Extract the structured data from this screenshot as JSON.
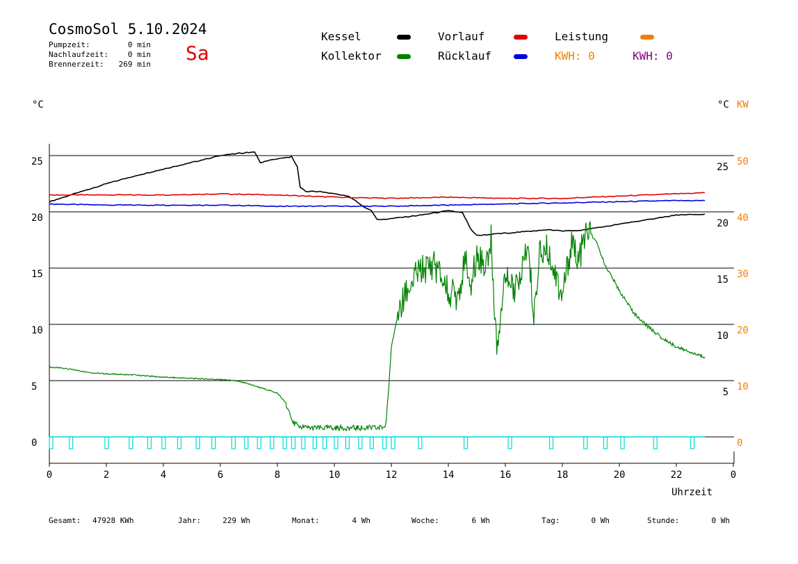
{
  "header": {
    "title": "CosmoSol 5.10.2024",
    "pumpzeit_label": "Pumpzeit:",
    "pumpzeit_value": "0 min",
    "nachlauf_label": "Nachlaufzeit:",
    "nachlauf_value": "0 min",
    "brenner_label": "Brennerzeit:",
    "brenner_value": "269 min",
    "day": "Sa"
  },
  "legend": {
    "kessel": {
      "label": "Kessel",
      "color": "#000000"
    },
    "kollektor": {
      "label": "Kollektor",
      "color": "#008000"
    },
    "vorlauf": {
      "label": "Vorlauf",
      "color": "#e00000"
    },
    "ruecklauf": {
      "label": "Rücklauf",
      "color": "#0000e0"
    },
    "leistung": {
      "label": "Leistung",
      "color": "#f08000"
    },
    "kwh1": {
      "text": "KWH: 0",
      "color": "#f08000"
    },
    "kwh2": {
      "text": "KWH: 0",
      "color": "#800080"
    }
  },
  "axes": {
    "left_unit": "°C",
    "right_unit": "°C",
    "right_unit2": "KW",
    "xlabel": "Uhrzeit"
  },
  "footer": {
    "gesamt_label": "Gesamt:",
    "gesamt_value": "47928 KWh",
    "jahr_label": "Jahr:",
    "jahr_value": "229 Wh",
    "monat_label": "Monat:",
    "monat_value": "4 Wh",
    "woche_label": "Woche:",
    "woche_value": "6 Wh",
    "tag_label": "Tag:",
    "tag_value": "0 Wh",
    "stunde_label": "Stunde:",
    "stunde_value": "0 Wh"
  },
  "chart_data": {
    "type": "line",
    "xlim": [
      0,
      24
    ],
    "ylim": [
      0,
      25
    ],
    "x_ticks": [
      "0",
      "2",
      "4",
      "6",
      "8",
      "10",
      "12",
      "14",
      "16",
      "18",
      "20",
      "22",
      "0"
    ],
    "y_left_ticks": [
      "0",
      "5",
      "10",
      "15",
      "20",
      "25"
    ],
    "y_right_inner_ticks": [
      "5",
      "10",
      "15",
      "20",
      "25"
    ],
    "y_right_kw_ticks": [
      "0",
      "10",
      "20",
      "30",
      "40",
      "50"
    ],
    "grid": true,
    "series": [
      {
        "name": "Kessel",
        "color": "#000000",
        "x": [
          0,
          1,
          2,
          3,
          4,
          5,
          6,
          7,
          7.2,
          7.4,
          8,
          8.5,
          8.7,
          8.8,
          9,
          9.5,
          10,
          10.5,
          11,
          11.3,
          11.5,
          12,
          13,
          14,
          14.5,
          14.8,
          15,
          16,
          17,
          17.5,
          18,
          18.5,
          19,
          20,
          21,
          22,
          23
        ],
        "y": [
          20.9,
          21.7,
          22.5,
          23.2,
          23.8,
          24.4,
          25.0,
          25.3,
          25.3,
          24.4,
          24.7,
          24.9,
          24.0,
          22.2,
          21.8,
          21.8,
          21.6,
          21.4,
          20.5,
          20.1,
          19.3,
          19.4,
          19.7,
          20.1,
          19.9,
          18.4,
          17.9,
          18.1,
          18.3,
          18.4,
          18.3,
          18.3,
          18.5,
          18.9,
          19.3,
          19.7,
          19.8
        ]
      },
      {
        "name": "Vorlauf",
        "color": "#e00000",
        "x": [
          0,
          2,
          4,
          6,
          8,
          10,
          12,
          14,
          16,
          18,
          20,
          22,
          23
        ],
        "y": [
          21.5,
          21.5,
          21.5,
          21.6,
          21.5,
          21.3,
          21.2,
          21.3,
          21.2,
          21.2,
          21.4,
          21.6,
          21.7
        ]
      },
      {
        "name": "Rücklauf",
        "color": "#0000e0",
        "x": [
          0,
          2,
          4,
          6,
          8,
          10,
          12,
          14,
          16,
          18,
          20,
          22,
          23
        ],
        "y": [
          20.7,
          20.6,
          20.6,
          20.6,
          20.5,
          20.5,
          20.5,
          20.6,
          20.7,
          20.8,
          20.9,
          21.0,
          21.0
        ]
      },
      {
        "name": "Kollektor",
        "color": "#008000",
        "x": [
          0,
          0.5,
          1,
          1.5,
          2,
          3,
          4,
          5,
          6,
          6.5,
          7,
          7.5,
          8,
          8.3,
          8.5,
          8.7,
          9,
          9.5,
          10,
          10.5,
          11,
          11.5,
          11.8,
          11.9,
          12,
          12.2,
          12.5,
          13,
          13.5,
          14,
          14.3,
          14.6,
          14.8,
          15,
          15.3,
          15.5,
          15.7,
          16,
          16.3,
          16.5,
          16.8,
          17,
          17.2,
          17.5,
          17.8,
          18,
          18.3,
          18.6,
          18.9,
          19.2,
          19.5,
          20,
          20.5,
          21,
          21.5,
          22,
          22.5,
          23
        ],
        "y": [
          6.2,
          6.1,
          5.9,
          5.7,
          5.6,
          5.5,
          5.3,
          5.2,
          5.1,
          5.0,
          4.7,
          4.3,
          3.9,
          3.0,
          1.4,
          1.0,
          0.8,
          0.8,
          0.8,
          0.8,
          0.8,
          0.8,
          0.9,
          4.0,
          8.0,
          10.5,
          12.8,
          14.8,
          15.3,
          13.0,
          12.5,
          15.5,
          13.2,
          16.5,
          15.0,
          17.5,
          8.0,
          15.0,
          12.5,
          14.3,
          16.5,
          11.0,
          16.2,
          16.7,
          14.0,
          12.5,
          17.0,
          16.0,
          18.5,
          17.2,
          15.3,
          13.0,
          11.0,
          9.8,
          8.8,
          8.0,
          7.5,
          7.1
        ]
      }
    ],
    "pump_marker_hours": [
      0,
      0.7,
      1.95,
      2.8,
      3.45,
      3.95,
      4.5,
      5.15,
      5.7,
      6.4,
      6.85,
      7.3,
      7.75,
      8.2,
      8.5,
      8.85,
      9.25,
      9.6,
      10,
      10.4,
      10.85,
      11.25,
      11.7,
      12,
      12.95,
      14.55,
      16.1,
      17.55,
      18.75,
      19.45,
      20.05,
      21.2,
      22.5
    ],
    "pump_color": "#00d8d8"
  }
}
